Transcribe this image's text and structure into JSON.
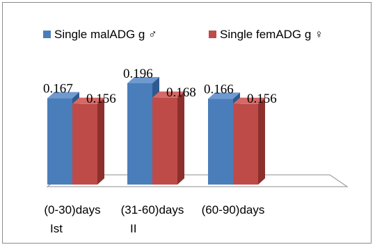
{
  "chart_data": {
    "type": "bar",
    "categories": [
      [
        "(0-30)days",
        "Ist"
      ],
      [
        "(31-60)days",
        "II"
      ],
      [
        "(60-90)days",
        ""
      ]
    ],
    "series": [
      {
        "name": "Single malADG g ♂",
        "values": [
          0.167,
          0.196,
          0.166
        ],
        "color": "#4a7ebb",
        "dark": "#2f5a8f",
        "light": "#6e9ad0"
      },
      {
        "name": "Single femADG g ♀",
        "values": [
          0.156,
          0.168,
          0.156
        ],
        "color": "#be4b48",
        "dark": "#8c2f2d",
        "light": "#d46a67"
      }
    ],
    "data_labels": [
      [
        "0.167",
        "0.196",
        "0.166"
      ],
      [
        "0.156",
        "0.168",
        "0.156"
      ]
    ],
    "legend_position": "top",
    "style": "3d-column",
    "grid": false,
    "ylim": [
      0,
      0.25
    ]
  }
}
